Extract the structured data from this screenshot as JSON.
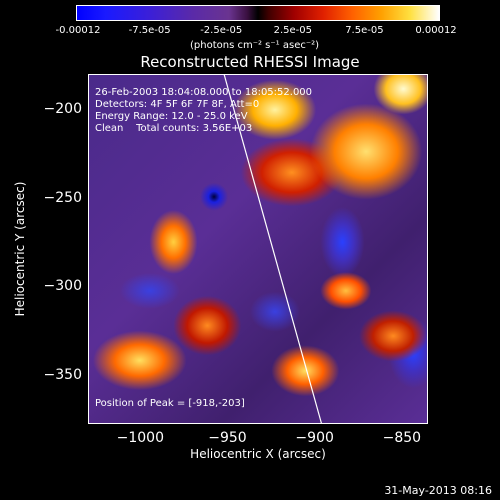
{
  "colorbar": {
    "ticks": [
      "-0.00012",
      "-7.5e-05",
      "-2.5e-05",
      "2.5e-05",
      "7.5e-05",
      "0.00012"
    ],
    "units": "(photons cm⁻² s⁻¹ asec⁻²)"
  },
  "chart_data": {
    "type": "heatmap",
    "title": "Reconstructed RHESSI Image",
    "xlabel": "Heliocentric X (arcsec)",
    "ylabel": "Heliocentric Y (arcsec)",
    "xlim": [
      -1030,
      -835
    ],
    "ylim": [
      -378,
      -180
    ],
    "xticks": [
      -1000,
      -950,
      -900,
      -850
    ],
    "xtick_labels": [
      "−1000",
      "−950",
      "−900",
      "−850"
    ],
    "yticks": [
      -200,
      -250,
      -300,
      -350
    ],
    "ytick_labels": [
      "−200",
      "−250",
      "−300",
      "−350"
    ],
    "colorscale": {
      "min": -0.00012,
      "max": 0.00012
    },
    "limb_line": [
      [
        -952,
        -180
      ],
      [
        -896,
        -378
      ]
    ],
    "peak_position": [
      -918,
      -203
    ]
  },
  "info": {
    "line1": "26-Feb-2003 18:04:08.000 to 18:05:52.000",
    "line2": "Detectors: 4F 5F 6F 7F 8F, Att=0",
    "line3": "Energy Range: 12.0 - 25.0 keV",
    "line4": "Clean    Total counts: 3.56E+03"
  },
  "peak_label": "Position of Peak = [-918,-203]",
  "footer_date": "31-May-2013 08:16"
}
